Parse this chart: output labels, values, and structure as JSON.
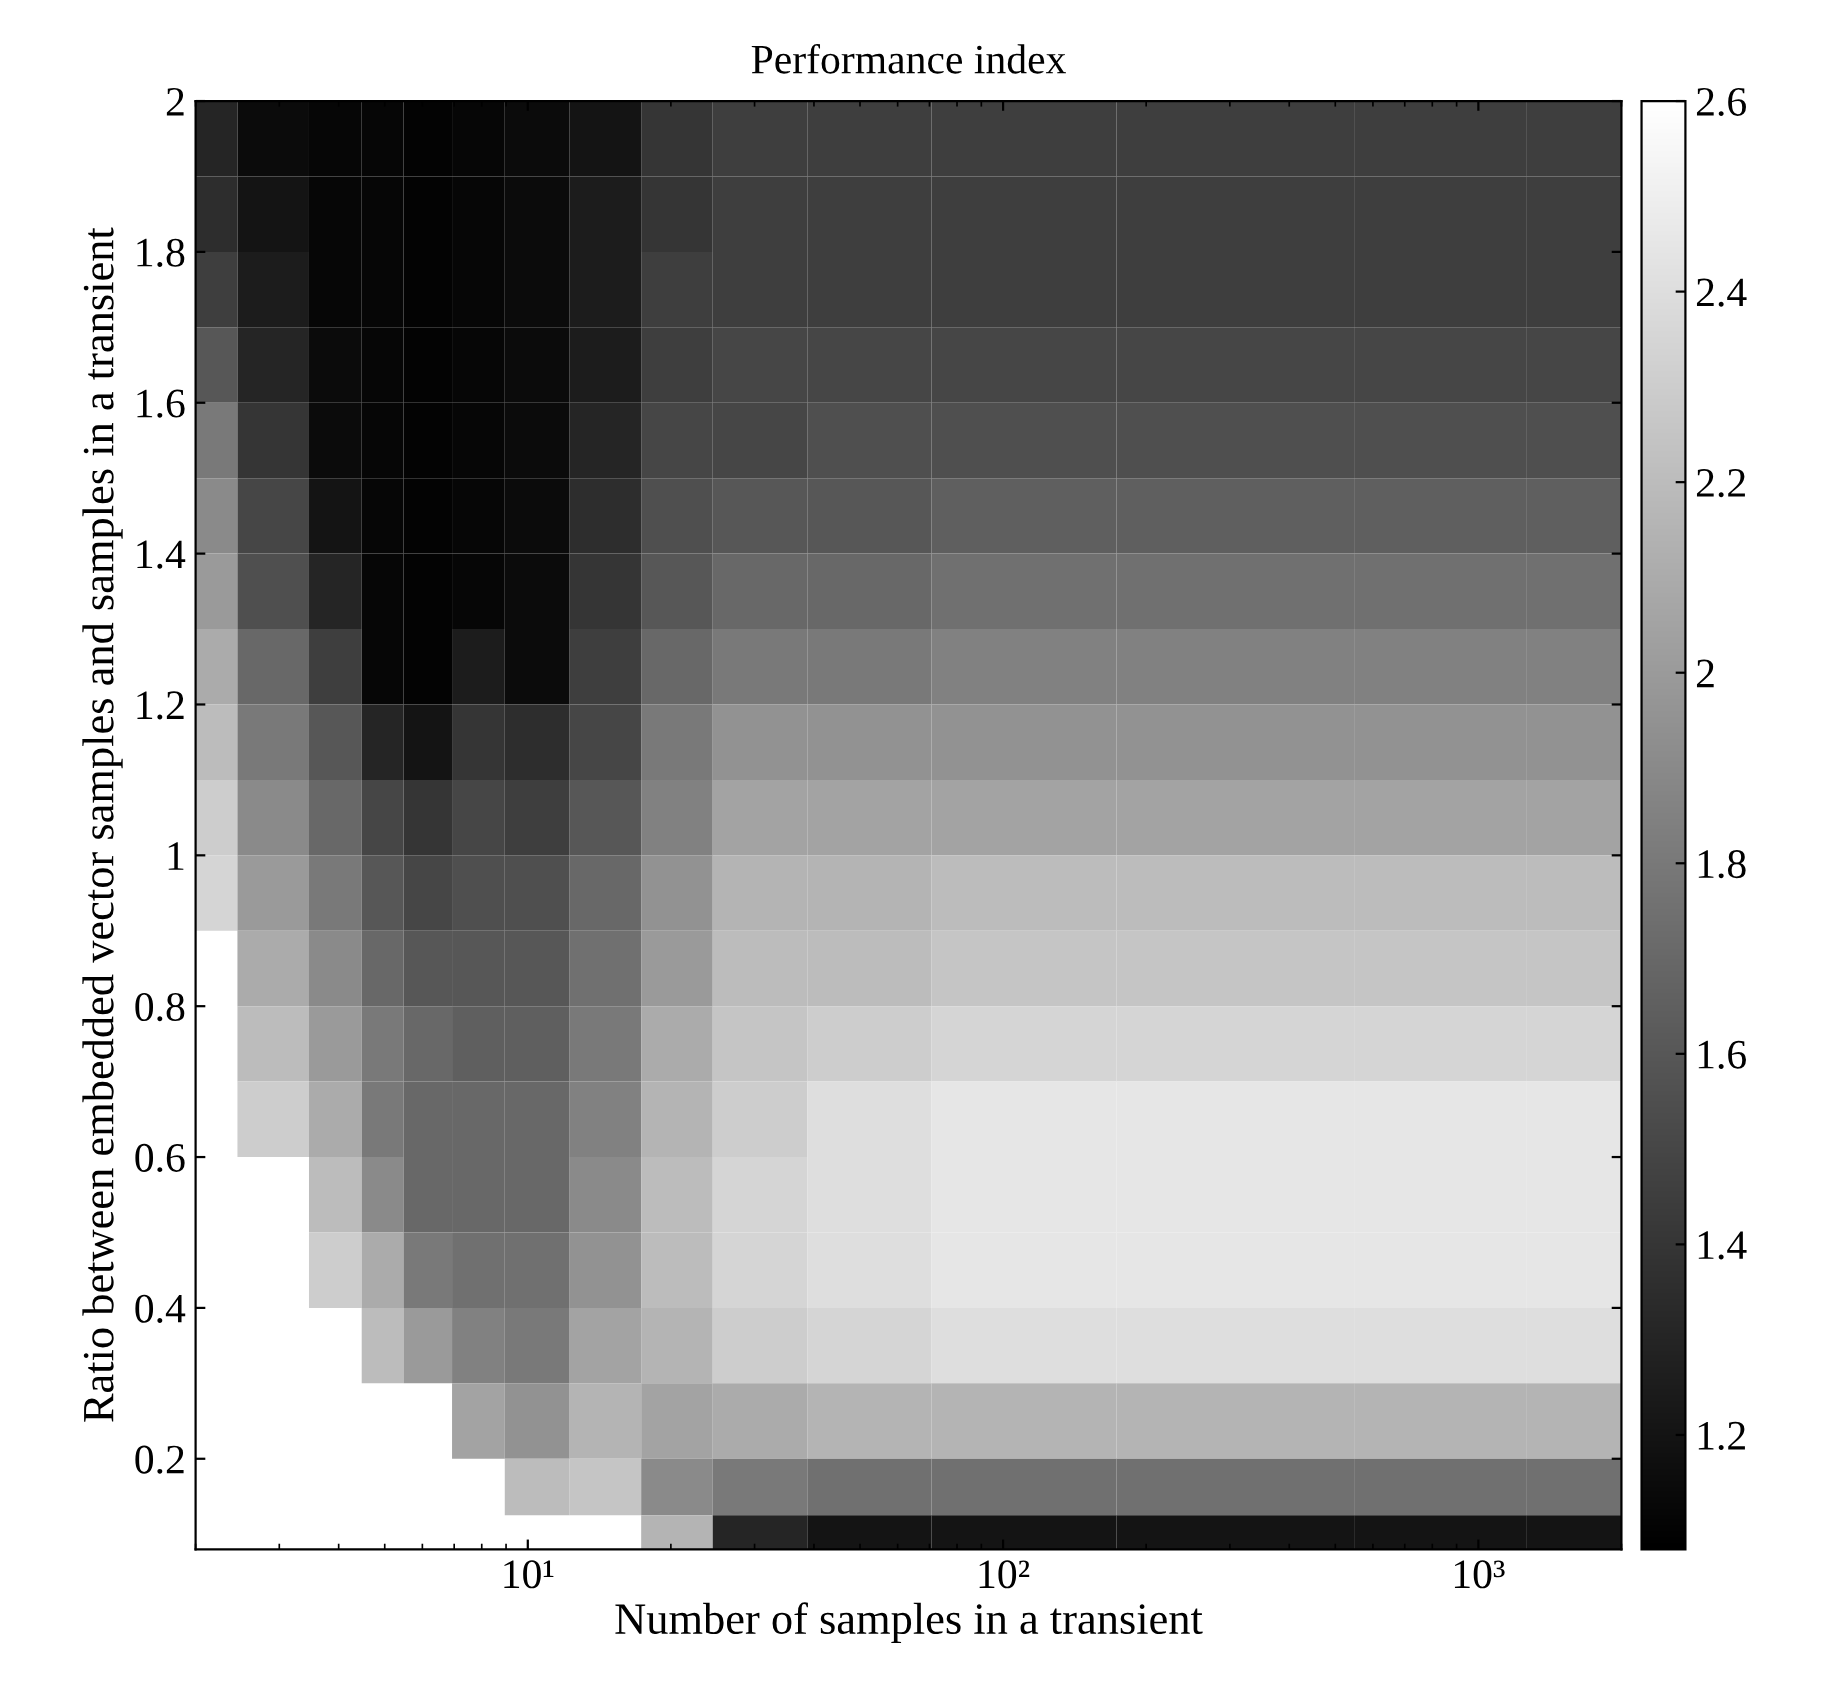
{
  "chart_data": {
    "type": "heatmap",
    "title": "Performance index",
    "xlabel": "Number of samples in a transient",
    "ylabel": "Ratio between embedded vector samples and samples in a transient",
    "x": [
      2,
      3,
      4,
      5,
      6,
      8,
      10,
      15,
      20,
      30,
      50,
      100,
      300,
      1000,
      1600
    ],
    "y": [
      1.95,
      1.85,
      1.75,
      1.65,
      1.55,
      1.45,
      1.35,
      1.25,
      1.15,
      1.05,
      0.95,
      0.85,
      0.75,
      0.65,
      0.55,
      0.45,
      0.35,
      0.25,
      0.15,
      0.1
    ],
    "cells": [
      [
        1.3,
        1.15,
        1.12,
        1.12,
        1.1,
        1.12,
        1.15,
        1.2,
        1.4,
        1.45,
        1.45,
        1.45,
        1.45,
        1.45,
        1.45
      ],
      [
        1.35,
        1.2,
        1.12,
        1.12,
        1.1,
        1.12,
        1.15,
        1.25,
        1.4,
        1.45,
        1.45,
        1.45,
        1.45,
        1.45,
        1.45
      ],
      [
        1.45,
        1.25,
        1.12,
        1.12,
        1.1,
        1.12,
        1.15,
        1.25,
        1.45,
        1.45,
        1.45,
        1.45,
        1.45,
        1.45,
        1.45
      ],
      [
        1.6,
        1.3,
        1.15,
        1.12,
        1.1,
        1.12,
        1.15,
        1.25,
        1.45,
        1.5,
        1.5,
        1.5,
        1.5,
        1.5,
        1.5
      ],
      [
        1.8,
        1.4,
        1.15,
        1.12,
        1.1,
        1.12,
        1.15,
        1.3,
        1.5,
        1.5,
        1.55,
        1.55,
        1.55,
        1.55,
        1.55
      ],
      [
        1.9,
        1.5,
        1.2,
        1.12,
        1.1,
        1.12,
        1.15,
        1.35,
        1.55,
        1.6,
        1.6,
        1.65,
        1.65,
        1.65,
        1.65
      ],
      [
        2.0,
        1.55,
        1.3,
        1.12,
        1.1,
        1.12,
        1.15,
        1.4,
        1.6,
        1.7,
        1.7,
        1.75,
        1.75,
        1.75,
        1.75
      ],
      [
        2.1,
        1.7,
        1.45,
        1.12,
        1.1,
        1.25,
        1.15,
        1.45,
        1.7,
        1.8,
        1.8,
        1.85,
        1.85,
        1.85,
        1.85
      ],
      [
        2.2,
        1.8,
        1.6,
        1.3,
        1.2,
        1.4,
        1.35,
        1.5,
        1.8,
        1.95,
        1.95,
        1.95,
        1.95,
        1.95,
        1.95
      ],
      [
        2.3,
        1.9,
        1.7,
        1.5,
        1.4,
        1.5,
        1.45,
        1.6,
        1.85,
        2.05,
        2.05,
        2.05,
        2.05,
        2.05,
        2.05
      ],
      [
        2.35,
        2.0,
        1.8,
        1.6,
        1.5,
        1.55,
        1.55,
        1.7,
        1.95,
        2.15,
        2.15,
        2.2,
        2.2,
        2.2,
        2.2
      ],
      [
        null,
        2.1,
        1.9,
        1.7,
        1.6,
        1.6,
        1.6,
        1.75,
        2.0,
        2.2,
        2.2,
        2.25,
        2.25,
        2.25,
        2.25
      ],
      [
        null,
        2.2,
        2.0,
        1.8,
        1.7,
        1.65,
        1.65,
        1.8,
        2.1,
        2.25,
        2.3,
        2.35,
        2.35,
        2.35,
        2.35
      ],
      [
        null,
        2.3,
        2.1,
        1.8,
        1.7,
        1.7,
        1.7,
        1.85,
        2.15,
        2.3,
        2.4,
        2.45,
        2.45,
        2.45,
        2.45
      ],
      [
        null,
        null,
        2.2,
        1.9,
        1.7,
        1.7,
        1.7,
        1.9,
        2.2,
        2.35,
        2.4,
        2.45,
        2.45,
        2.45,
        2.45
      ],
      [
        null,
        null,
        2.3,
        2.1,
        1.8,
        1.75,
        1.75,
        1.95,
        2.2,
        2.35,
        2.4,
        2.45,
        2.45,
        2.45,
        2.45
      ],
      [
        null,
        null,
        null,
        2.2,
        2.0,
        1.85,
        1.8,
        2.05,
        2.15,
        2.3,
        2.35,
        2.4,
        2.4,
        2.4,
        2.4
      ],
      [
        null,
        null,
        null,
        null,
        null,
        2.05,
        1.95,
        2.15,
        2.05,
        2.1,
        2.15,
        2.15,
        2.15,
        2.15,
        2.15
      ],
      [
        null,
        null,
        null,
        null,
        null,
        null,
        2.2,
        2.25,
        1.9,
        1.8,
        1.75,
        1.75,
        1.75,
        1.75,
        1.75
      ],
      [
        null,
        null,
        null,
        null,
        null,
        null,
        null,
        null,
        2.15,
        1.3,
        1.2,
        1.2,
        1.2,
        1.2,
        1.2
      ]
    ],
    "xlim": [
      2,
      2000
    ],
    "ylim": [
      0.08,
      2
    ],
    "log": "x",
    "xticks": [
      {
        "value": 10,
        "label": "10¹"
      },
      {
        "value": 100,
        "label": "10²"
      },
      {
        "value": 1000,
        "label": "10³"
      }
    ],
    "yticks": [
      0.2,
      0.4,
      0.6,
      0.8,
      {
        "value": 1,
        "label": "1"
      },
      1.2,
      1.4,
      1.6,
      1.8,
      {
        "value": 2,
        "label": "2"
      }
    ],
    "clim": [
      1.08,
      2.6
    ],
    "cticks": [
      1.2,
      1.4,
      1.6,
      1.8,
      {
        "value": 2,
        "label": "2"
      },
      2.2,
      2.4,
      2.6
    ]
  }
}
